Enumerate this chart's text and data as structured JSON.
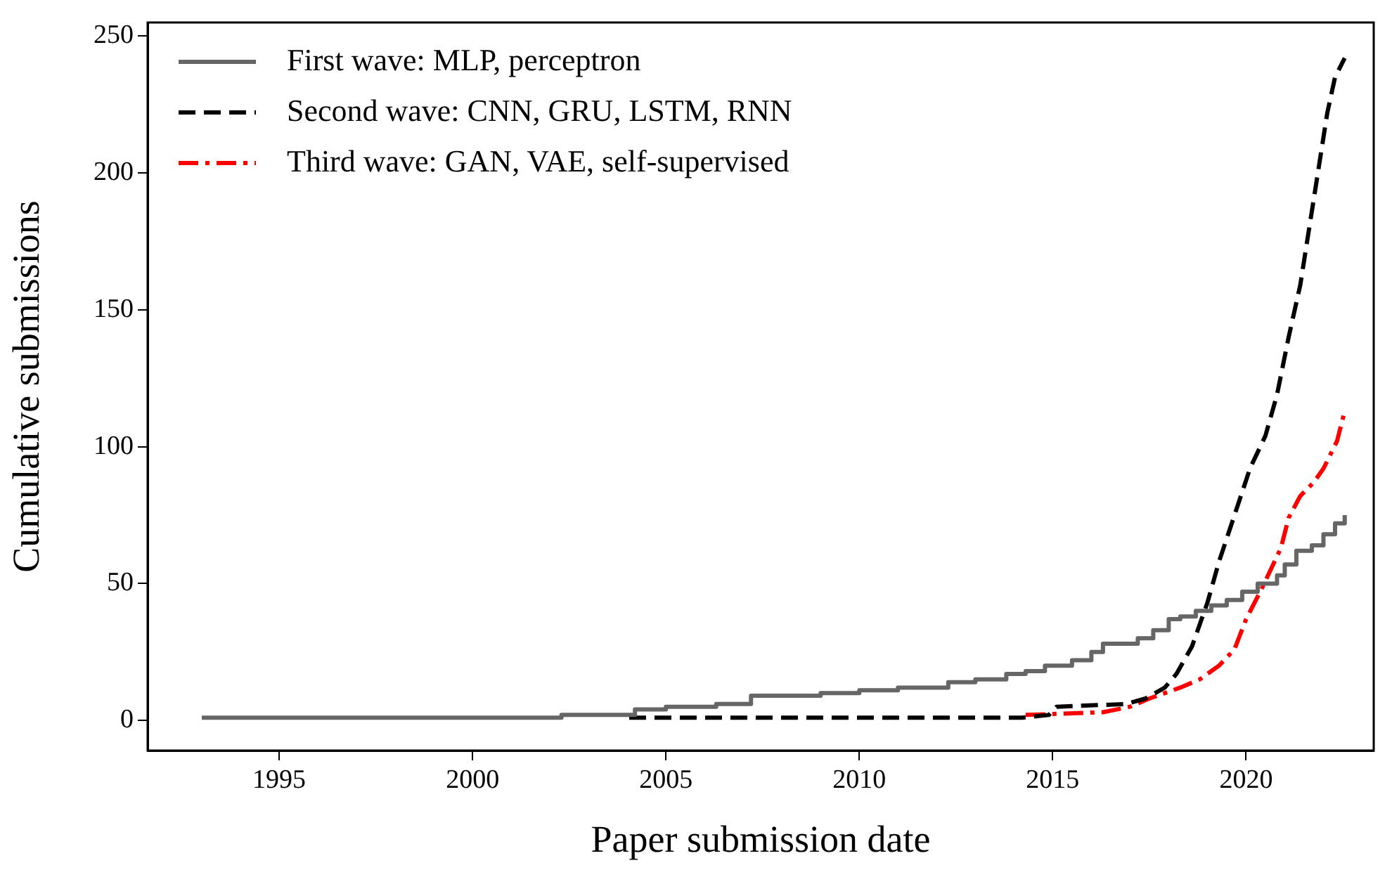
{
  "chart_data": {
    "type": "line",
    "xlabel": "Paper submission date",
    "ylabel": "Cumulative submissions",
    "xlim": [
      1991.6,
      2023.3
    ],
    "xticks": [
      1995,
      2000,
      2005,
      2010,
      2015,
      2020
    ],
    "ylim": [
      -11,
      255
    ],
    "yticks": [
      0,
      50,
      100,
      150,
      200,
      250
    ],
    "grid": false,
    "legend": "top left",
    "marker": "none",
    "series": [
      {
        "name": "First wave: MLP, perceptron",
        "type": "step",
        "color": "#666666",
        "line_style": "solid",
        "x": [
          1993.0,
          2002.3,
          2004.2,
          2005.0,
          2006.3,
          2007.2,
          2009.0,
          2010.0,
          2011.0,
          2012.3,
          2013.0,
          2013.8,
          2014.3,
          2014.8,
          2015.5,
          2016.0,
          2016.3,
          2017.2,
          2017.6,
          2018.0,
          2018.3,
          2018.7,
          2019.1,
          2019.5,
          2019.9,
          2020.3,
          2020.8,
          2021.0,
          2021.3,
          2021.7,
          2022.0,
          2022.3,
          2022.55
        ],
        "values": [
          1,
          2,
          4,
          5,
          6,
          9,
          10,
          11,
          12,
          14,
          15,
          17,
          18,
          20,
          22,
          25,
          28,
          30,
          33,
          37,
          38,
          40,
          42,
          44,
          47,
          50,
          53,
          57,
          62,
          64,
          68,
          72,
          75
        ]
      },
      {
        "name": "Second wave: CNN, GRU, LSTM, RNN",
        "type": "line",
        "color": "#000000",
        "line_style": "dashed",
        "x": [
          2004.05,
          2014.2,
          2014.9,
          2015.1,
          2016.9,
          2017.4,
          2017.9,
          2018.2,
          2018.6,
          2019.0,
          2019.3,
          2019.7,
          2020.1,
          2020.5,
          2020.8,
          2021.1,
          2021.4,
          2021.8,
          2022.1,
          2022.3,
          2022.55
        ],
        "values": [
          1,
          1,
          2,
          5,
          6,
          8,
          12,
          17,
          27,
          43,
          58,
          75,
          92,
          104,
          119,
          140,
          159,
          195,
          222,
          235,
          242
        ]
      },
      {
        "name": "Third wave: GAN, VAE, self-supervised",
        "type": "line",
        "color": "#ff0000",
        "line_style": "dashdot",
        "x": [
          2014.3,
          2016.3,
          2017.0,
          2017.5,
          2018.3,
          2018.8,
          2019.3,
          2019.7,
          2020.0,
          2020.4,
          2020.9,
          2021.1,
          2021.4,
          2021.75,
          2022.0,
          2022.35,
          2022.55
        ],
        "values": [
          2,
          3,
          5,
          8,
          12,
          15,
          20,
          26,
          37,
          48,
          63,
          74,
          82,
          87,
          92,
          102,
          113
        ]
      }
    ]
  }
}
